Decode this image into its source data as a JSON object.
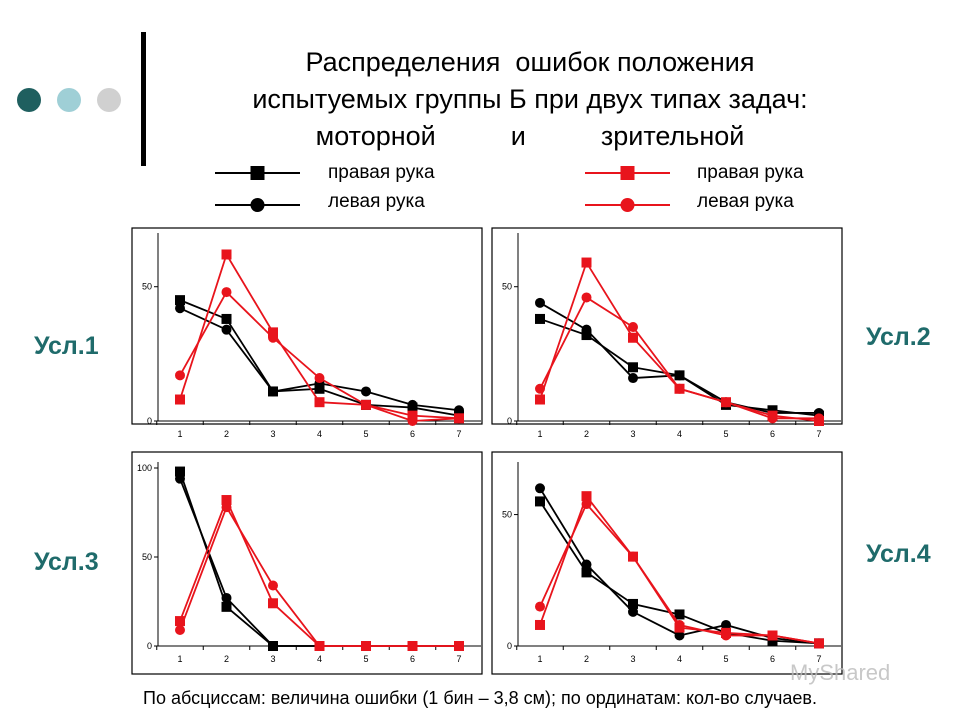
{
  "slide": {
    "title_lines": [
      "Распределения  ошибок положения",
      "испытуемых группы Б при двух типах задач:",
      "моторной          и          зрительной"
    ],
    "footer": "По абсциссам: величина ошибки (1 бин – 3,8 см); по ординатам: кол-во случаев.",
    "watermark": "MyShared",
    "decor_colors": [
      "#1f5f5f",
      "#9fcfd6",
      "#d0d0d0"
    ]
  },
  "legend": {
    "motor": {
      "color": "#000000",
      "right_hand": "правая рука",
      "left_hand": "левая рука"
    },
    "visual": {
      "color": "#e8141c",
      "right_hand": "правая рука",
      "left_hand": "левая рука"
    }
  },
  "conditions": {
    "c1": "Усл.1",
    "c2": "Усл.2",
    "c3": "Усл.3",
    "c4": "Усл.4"
  },
  "chart_data": [
    {
      "type": "line",
      "condition": "Усл.1",
      "x": [
        1,
        2,
        3,
        4,
        5,
        6,
        7
      ],
      "yticks": [
        0,
        50
      ],
      "ylim": [
        0,
        70
      ],
      "series": [
        {
          "name": "правая рука",
          "task": "моторной",
          "marker": "square",
          "color": "#000000",
          "values": [
            45,
            38,
            11,
            12,
            6,
            5,
            2
          ]
        },
        {
          "name": "левая рука",
          "task": "моторной",
          "marker": "circle",
          "color": "#000000",
          "values": [
            42,
            34,
            11,
            14,
            11,
            6,
            4
          ]
        },
        {
          "name": "правая рука",
          "task": "зрительной",
          "marker": "square",
          "color": "#e8141c",
          "values": [
            8,
            62,
            33,
            7,
            6,
            2,
            1
          ]
        },
        {
          "name": "левая рука",
          "task": "зрительной",
          "marker": "circle",
          "color": "#e8141c",
          "values": [
            17,
            48,
            31,
            16,
            6,
            0,
            1
          ]
        }
      ]
    },
    {
      "type": "line",
      "condition": "Усл.2",
      "x": [
        1,
        2,
        3,
        4,
        5,
        6,
        7
      ],
      "yticks": [
        0,
        50
      ],
      "ylim": [
        0,
        70
      ],
      "series": [
        {
          "name": "правая рука",
          "task": "моторной",
          "marker": "square",
          "color": "#000000",
          "values": [
            38,
            32,
            20,
            17,
            6,
            4,
            2
          ]
        },
        {
          "name": "левая рука",
          "task": "моторной",
          "marker": "circle",
          "color": "#000000",
          "values": [
            44,
            34,
            16,
            17,
            7,
            3,
            3
          ]
        },
        {
          "name": "правая рука",
          "task": "зрительной",
          "marker": "square",
          "color": "#e8141c",
          "values": [
            8,
            59,
            31,
            12,
            7,
            2,
            0
          ]
        },
        {
          "name": "левая рука",
          "task": "зрительной",
          "marker": "circle",
          "color": "#e8141c",
          "values": [
            12,
            46,
            35,
            12,
            7,
            1,
            1
          ]
        }
      ]
    },
    {
      "type": "line",
      "condition": "Усл.3",
      "x": [
        1,
        2,
        3,
        4,
        5,
        6,
        7
      ],
      "yticks": [
        0,
        50,
        100
      ],
      "ylim": [
        0,
        100
      ],
      "series": [
        {
          "name": "правая рука",
          "task": "моторной",
          "marker": "square",
          "color": "#000000",
          "values": [
            98,
            22,
            0,
            0,
            0,
            0,
            0
          ]
        },
        {
          "name": "левая рука",
          "task": "моторной",
          "marker": "circle",
          "color": "#000000",
          "values": [
            94,
            27,
            0,
            0,
            0,
            0,
            0
          ]
        },
        {
          "name": "правая рука",
          "task": "зрительной",
          "marker": "square",
          "color": "#e8141c",
          "values": [
            14,
            82,
            24,
            0,
            0,
            0,
            0
          ]
        },
        {
          "name": "левая рука",
          "task": "зрительной",
          "marker": "circle",
          "color": "#e8141c",
          "values": [
            9,
            78,
            34,
            0,
            0,
            0,
            0
          ]
        }
      ]
    },
    {
      "type": "line",
      "condition": "Усл.4",
      "x": [
        1,
        2,
        3,
        4,
        5,
        6,
        7
      ],
      "yticks": [
        0,
        50
      ],
      "ylim": [
        0,
        70
      ],
      "series": [
        {
          "name": "правая рука",
          "task": "моторной",
          "marker": "square",
          "color": "#000000",
          "values": [
            55,
            28,
            16,
            12,
            5,
            2,
            1
          ]
        },
        {
          "name": "левая рука",
          "task": "моторной",
          "marker": "circle",
          "color": "#000000",
          "values": [
            60,
            31,
            13,
            4,
            8,
            3,
            1
          ]
        },
        {
          "name": "правая рука",
          "task": "зрительной",
          "marker": "square",
          "color": "#e8141c",
          "values": [
            8,
            57,
            34,
            7,
            5,
            4,
            1
          ]
        },
        {
          "name": "левая рука",
          "task": "зрительной",
          "marker": "circle",
          "color": "#e8141c",
          "values": [
            15,
            54,
            34,
            8,
            4,
            4,
            1
          ]
        }
      ]
    }
  ]
}
